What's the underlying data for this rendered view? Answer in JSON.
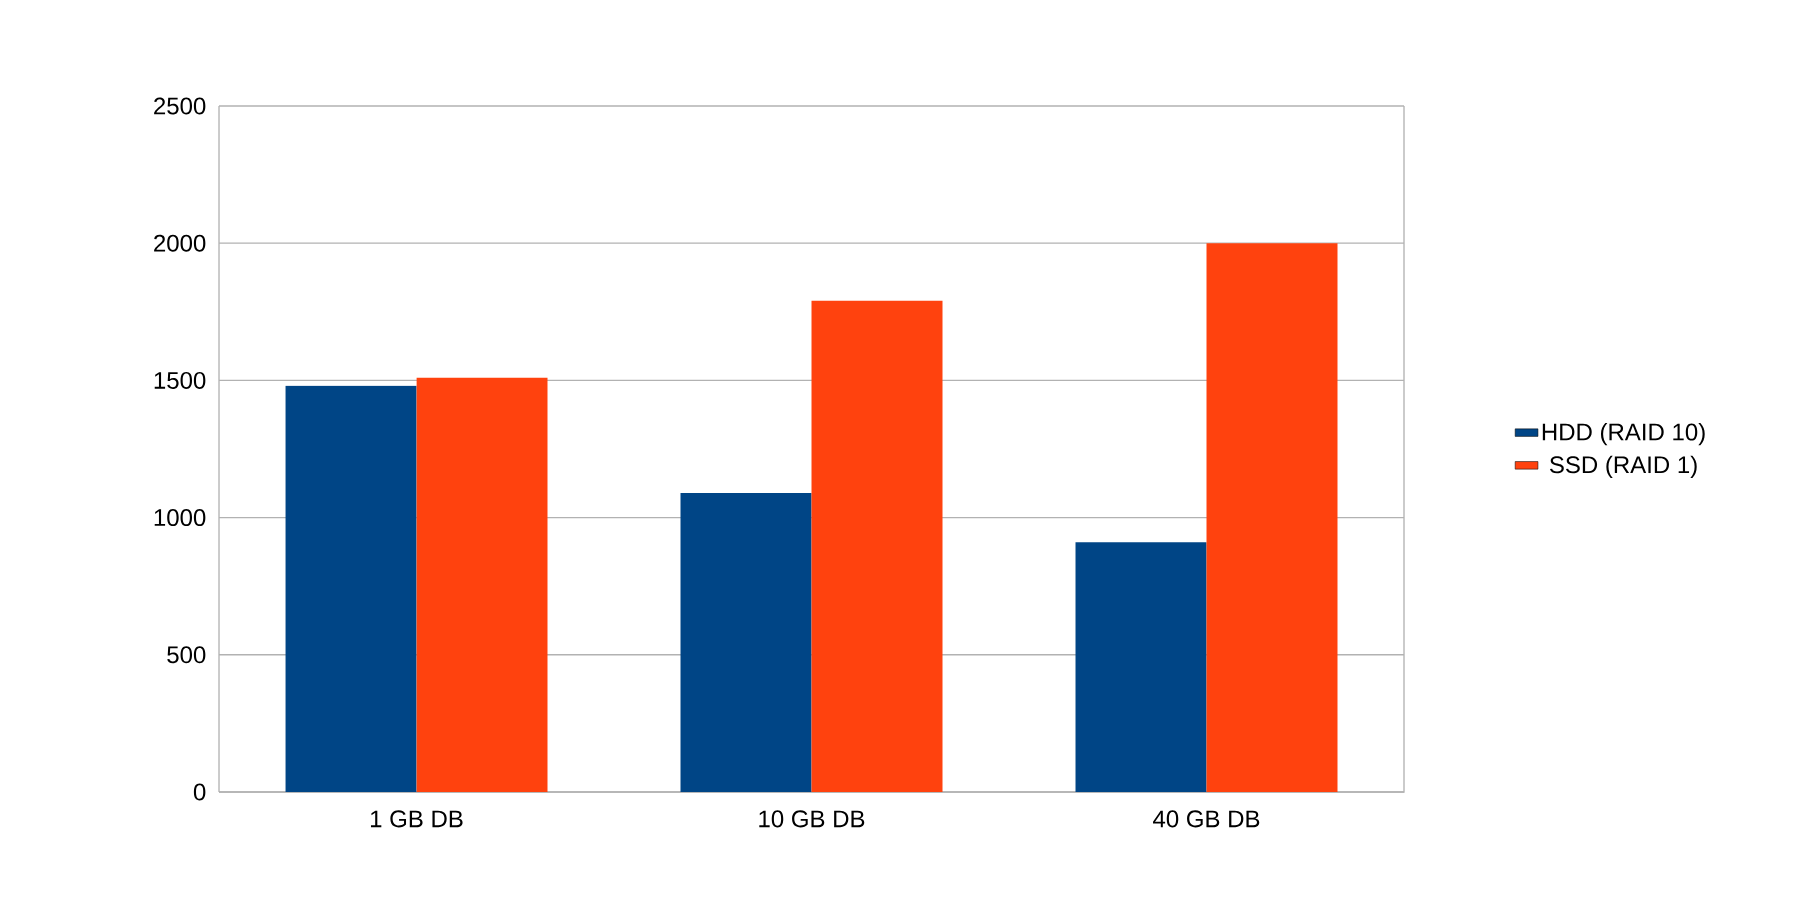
{
  "chart_data": {
    "type": "bar",
    "categories": [
      "1 GB DB",
      "10 GB DB",
      "40 GB DB"
    ],
    "series": [
      {
        "name": "HDD (RAID 10)",
        "color": "#004586",
        "values": [
          1480,
          1090,
          910
        ]
      },
      {
        "name": "SSD (RAID 1)",
        "color": "#ff420e",
        "values": [
          1510,
          1790,
          2000
        ]
      }
    ],
    "ylim": [
      0,
      2500
    ],
    "yticks": [
      0,
      500,
      1000,
      1500,
      2000,
      2500
    ],
    "grid": "y",
    "legend": "right"
  }
}
